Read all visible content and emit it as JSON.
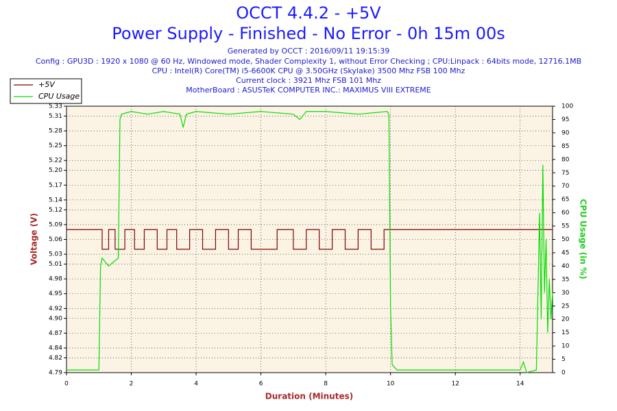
{
  "chart_data": {
    "type": "line",
    "title": "OCCT 4.4.2 - +5V",
    "subtitle": "Power Supply - Finished - No Error - 0h 15m 00s",
    "info": [
      "Generated by OCCT : 2016/09/11 19:15:39",
      "Config : GPU3D : 1920 x 1080 @ 60 Hz, Windowed mode, Shader Complexity 1, without Error Checking ; CPU:Linpack : 64bits mode, 12716.1MB",
      "CPU : Intel(R) Core(TM) i5-6600K CPU @ 3.50GHz (Skylake) 3500 Mhz FSB 100 Mhz",
      "Current clock : 3921 Mhz FSB 101 Mhz",
      "MotherBoard : ASUSTeK COMPUTER INC.: MAXIMUS VIII EXTREME"
    ],
    "x_label": "Duration (Minutes)",
    "y_label": "Voltage (V)",
    "y2_label": "CPU Usage (in %)",
    "xlim": [
      0,
      15
    ],
    "xticks": [
      0,
      2,
      4,
      6,
      8,
      10,
      12,
      14
    ],
    "ylim": [
      4.79,
      5.33
    ],
    "yticks": [
      4.79,
      4.82,
      4.84,
      4.87,
      {
        "value": 4.9,
        "label": "4.90"
      },
      4.92,
      4.95,
      4.98,
      5.01,
      5.03,
      5.06,
      5.09,
      5.12,
      5.14,
      5.17,
      {
        "value": 5.2,
        "label": "5.20"
      },
      5.22,
      5.25,
      5.28,
      5.31,
      5.33
    ],
    "y2lim": [
      0,
      100
    ],
    "y2ticks": [
      0,
      5,
      10,
      15,
      20,
      25,
      30,
      35,
      40,
      45,
      50,
      55,
      60,
      65,
      70,
      75,
      80,
      85,
      90,
      95,
      100
    ],
    "grid": true,
    "legend": "top-left",
    "series": [
      {
        "name": "+5V",
        "color": "#800000",
        "x": [
          0,
          1.1,
          1.1,
          1.3,
          1.3,
          1.5,
          1.5,
          1.8,
          1.8,
          2.1,
          2.1,
          2.4,
          2.4,
          2.8,
          2.8,
          3.1,
          3.1,
          3.4,
          3.4,
          3.8,
          3.8,
          4.2,
          4.2,
          4.6,
          4.6,
          5.0,
          5.0,
          5.3,
          5.3,
          5.7,
          5.7,
          6.5,
          6.5,
          7.0,
          7.0,
          7.4,
          7.4,
          7.8,
          7.8,
          8.2,
          8.2,
          8.6,
          8.6,
          9.0,
          9.0,
          9.4,
          9.4,
          9.8,
          9.8,
          15
        ],
        "values": [
          5.08,
          5.08,
          5.04,
          5.04,
          5.08,
          5.08,
          5.04,
          5.04,
          5.08,
          5.08,
          5.04,
          5.04,
          5.08,
          5.08,
          5.04,
          5.04,
          5.08,
          5.08,
          5.04,
          5.04,
          5.08,
          5.08,
          5.04,
          5.04,
          5.08,
          5.08,
          5.04,
          5.04,
          5.08,
          5.08,
          5.04,
          5.04,
          5.08,
          5.08,
          5.04,
          5.04,
          5.08,
          5.08,
          5.04,
          5.04,
          5.08,
          5.08,
          5.04,
          5.04,
          5.08,
          5.08,
          5.04,
          5.04,
          5.08,
          5.08
        ]
      },
      {
        "name": "CPU Usage",
        "color": "#00dd00",
        "axis": "y2",
        "x": [
          0,
          0.9,
          1.0,
          1.05,
          1.1,
          1.3,
          1.5,
          1.6,
          1.65,
          1.7,
          2.0,
          2.5,
          3.0,
          3.5,
          3.6,
          3.7,
          4.0,
          5.0,
          6.0,
          7.0,
          7.2,
          7.4,
          8.0,
          9.0,
          9.9,
          9.95,
          10.0,
          10.05,
          10.2,
          11,
          12,
          13,
          14,
          14.1,
          14.2,
          14.5,
          14.6,
          14.65,
          14.7,
          14.75,
          14.8,
          14.85,
          14.9,
          14.95,
          15
        ],
        "values": [
          1,
          1,
          1,
          40,
          43,
          40,
          42,
          43,
          95,
          97,
          98,
          97,
          98,
          97,
          92,
          97,
          98,
          97,
          98,
          97,
          95,
          98,
          98,
          97,
          98,
          97,
          25,
          3,
          1,
          1,
          1,
          1,
          1,
          4,
          0,
          1,
          60,
          20,
          78,
          30,
          50,
          15,
          35,
          20,
          30
        ]
      }
    ]
  }
}
